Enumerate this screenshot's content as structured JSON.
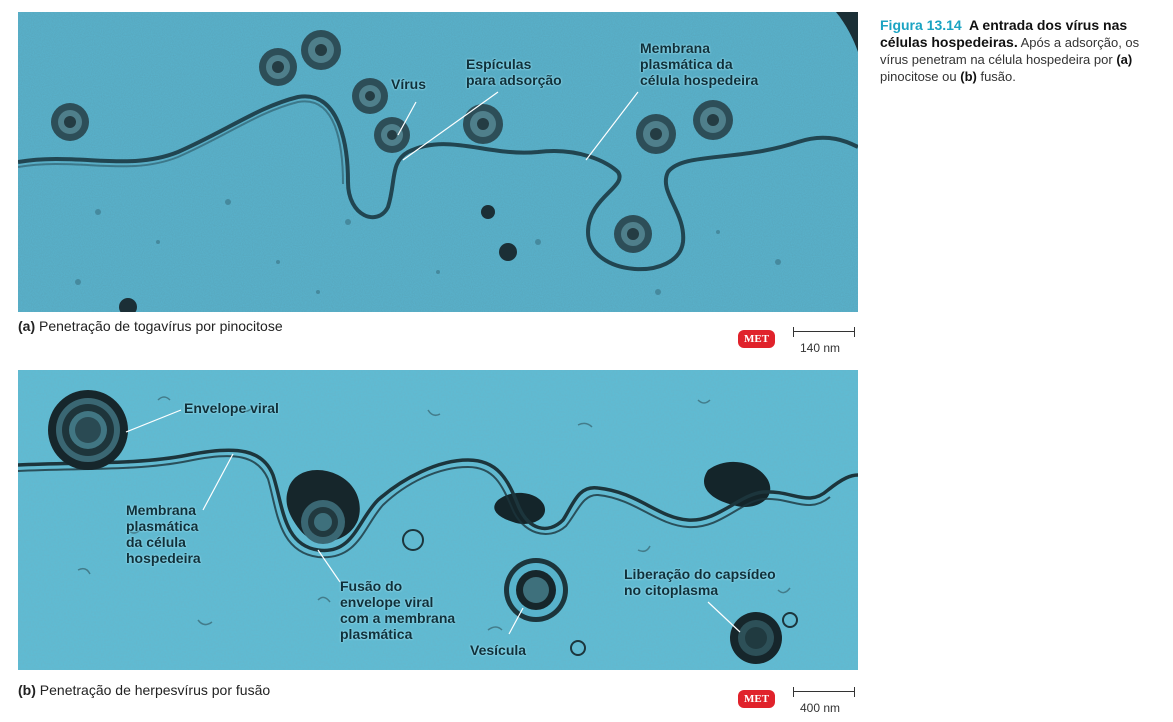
{
  "panel_a": {
    "labels": {
      "virus": "Vírus",
      "spicules_1": "Espículas",
      "spicules_2": "para adsorção",
      "membrane_1": "Membrana",
      "membrane_2": "plasmática da",
      "membrane_3": "célula hospedeira"
    },
    "caption_letter": "(a)",
    "caption_text": " Penetração de togavírus por pinocitose",
    "met": "MET",
    "scale": "140 nm"
  },
  "panel_b": {
    "labels": {
      "envelope": "Envelope viral",
      "membrane_1": "Membrana",
      "membrane_2": "plasmática",
      "membrane_3": "da célula",
      "membrane_4": "hospedeira",
      "fusion_1": "Fusão do",
      "fusion_2": "envelope viral",
      "fusion_3": "com a membrana",
      "fusion_4": "plasmática",
      "vesicle": "Vesícula",
      "release_1": "Liberação do capsídeo",
      "release_2": "no citoplasma"
    },
    "caption_letter": "(b)",
    "caption_text": " Penetração de herpesvírus por fusão",
    "met": "MET",
    "scale": "400 nm"
  },
  "figure_caption": {
    "number": "Figura 13.14",
    "title": "A entrada dos vírus nas células hospedeiras.",
    "text_1": " Após a adsorção, os vírus penetram na célula hospedeira por ",
    "a": "(a)",
    "text_2": " pinocitose ou ",
    "b": "(b)",
    "text_3": " fusão."
  },
  "colors": {
    "panel_a_bg": "#58b4cf",
    "panel_b_bg": "#5dbdd6",
    "accent": "#1aa3c2",
    "met_badge": "#e0222b"
  }
}
